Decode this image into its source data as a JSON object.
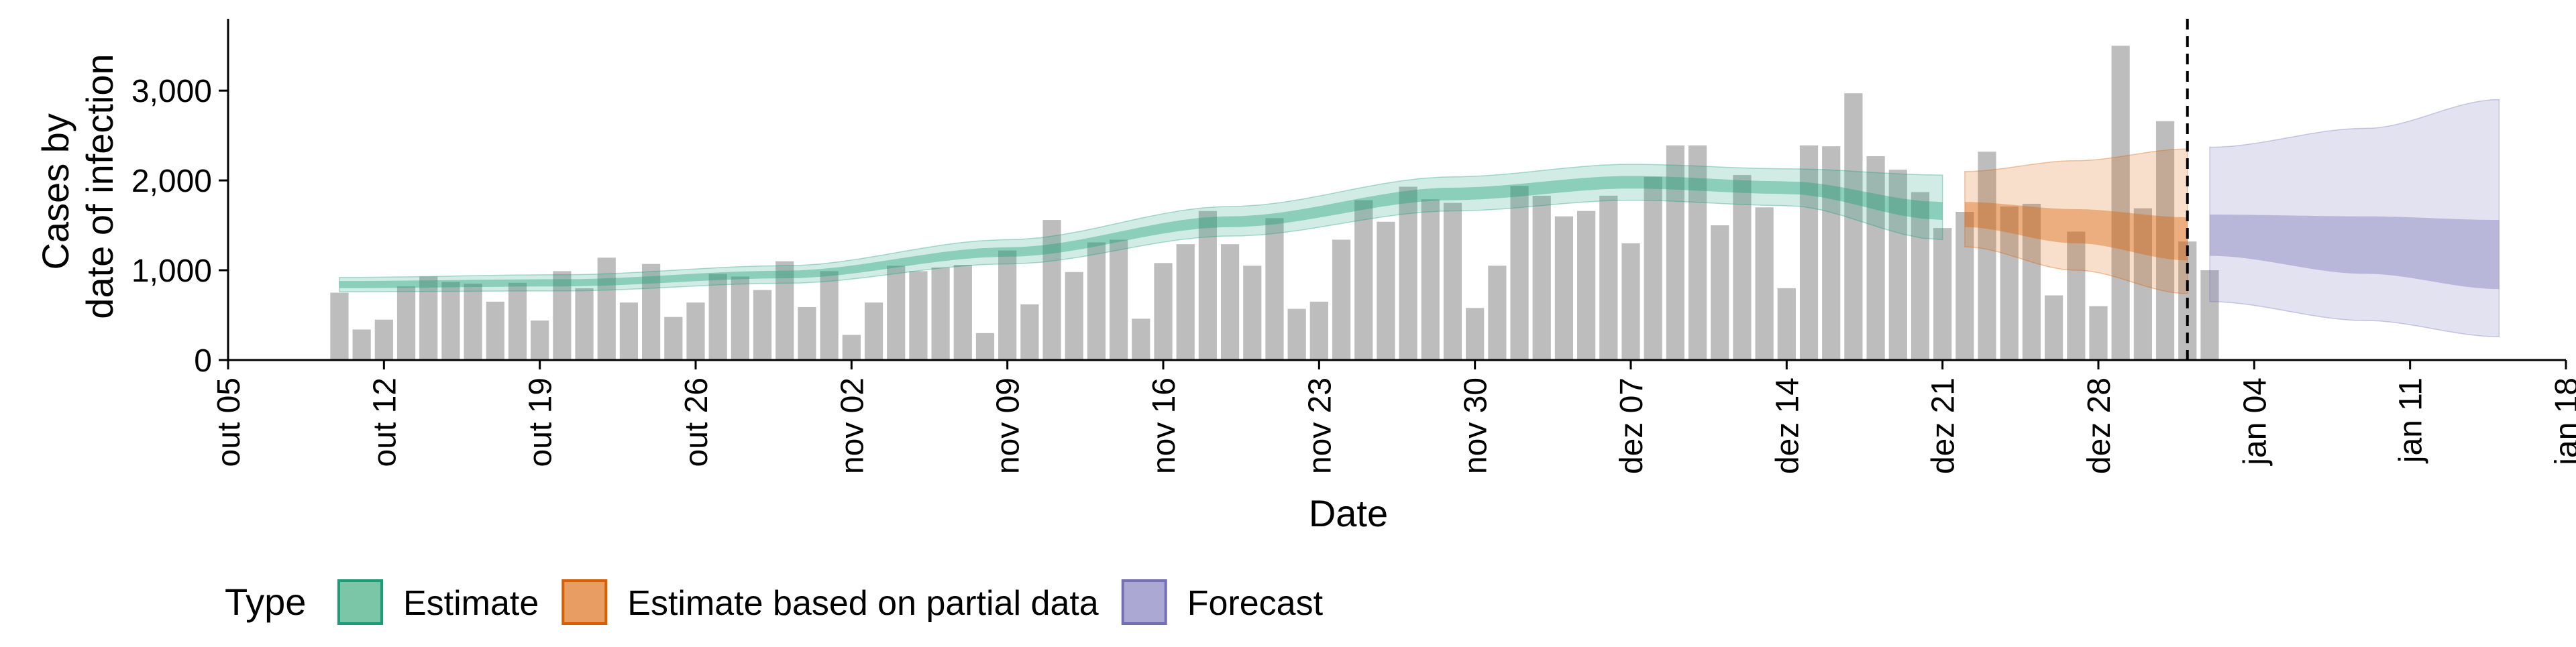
{
  "chart_data": {
    "type": "bar",
    "title": "",
    "xlabel": "Date",
    "ylabel_lines": [
      "Cases by",
      "date of infection"
    ],
    "x_domain": [
      "2020-10-05",
      "2021-01-18"
    ],
    "ylim": [
      0,
      3800
    ],
    "x_ticks": [
      {
        "date": "2020-10-05",
        "label": "out 05"
      },
      {
        "date": "2020-10-12",
        "label": "out 12"
      },
      {
        "date": "2020-10-19",
        "label": "out 19"
      },
      {
        "date": "2020-10-26",
        "label": "out 26"
      },
      {
        "date": "2020-11-02",
        "label": "nov 02"
      },
      {
        "date": "2020-11-09",
        "label": "nov 09"
      },
      {
        "date": "2020-11-16",
        "label": "nov 16"
      },
      {
        "date": "2020-11-23",
        "label": "nov 23"
      },
      {
        "date": "2020-11-30",
        "label": "nov 30"
      },
      {
        "date": "2020-12-07",
        "label": "dez 07"
      },
      {
        "date": "2020-12-14",
        "label": "dez 14"
      },
      {
        "date": "2020-12-21",
        "label": "dez 21"
      },
      {
        "date": "2020-12-28",
        "label": "dez 28"
      },
      {
        "date": "2021-01-04",
        "label": "jan 04"
      },
      {
        "date": "2021-01-11",
        "label": "jan 11"
      },
      {
        "date": "2021-01-18",
        "label": "jan 18"
      }
    ],
    "y_ticks": [
      {
        "value": 0,
        "label": "0"
      },
      {
        "value": 1000,
        "label": "1,000"
      },
      {
        "value": 2000,
        "label": "2,000"
      },
      {
        "value": 3000,
        "label": "3,000"
      }
    ],
    "grid": false,
    "bars": {
      "start_date": "2020-10-10",
      "color": "#bdbdbd",
      "values": [
        750,
        340,
        450,
        820,
        930,
        870,
        850,
        650,
        860,
        440,
        990,
        800,
        1140,
        640,
        1070,
        480,
        640,
        960,
        930,
        780,
        1100,
        590,
        990,
        280,
        640,
        1050,
        990,
        1030,
        1060,
        300,
        1220,
        620,
        1560,
        980,
        1310,
        1340,
        460,
        1080,
        1290,
        1660,
        1290,
        1050,
        1580,
        570,
        650,
        1340,
        1780,
        1540,
        1930,
        1790,
        1750,
        580,
        1050,
        1940,
        1830,
        1600,
        1660,
        1830,
        1300,
        2040,
        2390,
        2390,
        1500,
        2060,
        1700,
        800,
        2390,
        2380,
        2970,
        2270,
        2120,
        1870,
        1470,
        1650,
        2320,
        1710,
        1740,
        720,
        1430,
        600,
        3500,
        1690,
        2660,
        1320,
        1000
      ]
    },
    "cutoff_date": "2021-01-01",
    "series": [
      {
        "name": "Estimate",
        "color": "#1b9e77",
        "start_date": "2020-10-10",
        "end_date": "2020-12-21",
        "anchors": [
          {
            "date": "2020-10-10",
            "median": 840,
            "inner": [
              800,
              880
            ],
            "outer": [
              760,
              920
            ]
          },
          {
            "date": "2020-10-20",
            "median": 860,
            "inner": [
              820,
              900
            ],
            "outer": [
              770,
              950
            ]
          },
          {
            "date": "2020-10-30",
            "median": 950,
            "inner": [
              910,
              995
            ],
            "outer": [
              855,
              1050
            ]
          },
          {
            "date": "2020-11-09",
            "median": 1200,
            "inner": [
              1150,
              1255
            ],
            "outer": [
              1070,
              1340
            ]
          },
          {
            "date": "2020-11-19",
            "median": 1540,
            "inner": [
              1480,
              1600
            ],
            "outer": [
              1380,
              1710
            ]
          },
          {
            "date": "2020-11-29",
            "median": 1850,
            "inner": [
              1780,
              1920
            ],
            "outer": [
              1660,
              2040
            ]
          },
          {
            "date": "2020-12-07",
            "median": 1980,
            "inner": [
              1910,
              2050
            ],
            "outer": [
              1780,
              2180
            ]
          },
          {
            "date": "2020-12-14",
            "median": 1920,
            "inner": [
              1850,
              1990
            ],
            "outer": [
              1720,
              2130
            ]
          },
          {
            "date": "2020-12-21",
            "median": 1660,
            "inner": [
              1560,
              1760
            ],
            "outer": [
              1340,
              2060
            ]
          }
        ]
      },
      {
        "name": "Estimate based on partial data",
        "color": "#d95f02",
        "start_date": "2020-12-22",
        "end_date": "2021-01-01",
        "anchors": [
          {
            "date": "2020-12-22",
            "median": 1620,
            "inner": [
              1480,
              1760
            ],
            "outer": [
              1260,
              2100
            ]
          },
          {
            "date": "2020-12-27",
            "median": 1480,
            "inner": [
              1300,
              1680
            ],
            "outer": [
              1000,
              2220
            ]
          },
          {
            "date": "2021-01-01",
            "median": 1340,
            "inner": [
              1110,
              1590
            ],
            "outer": [
              740,
              2350
            ]
          }
        ]
      },
      {
        "name": "Forecast",
        "color": "#7570b3",
        "start_date": "2021-01-02",
        "end_date": "2021-01-15",
        "anchors": [
          {
            "date": "2021-01-02",
            "median": 1380,
            "inner": [
              1160,
              1620
            ],
            "outer": [
              650,
              2370
            ]
          },
          {
            "date": "2021-01-09",
            "median": 1290,
            "inner": [
              960,
              1600
            ],
            "outer": [
              440,
              2580
            ]
          },
          {
            "date": "2021-01-15",
            "median": 1210,
            "inner": [
              790,
              1560
            ],
            "outer": [
              260,
              2900
            ]
          }
        ]
      }
    ],
    "legend": {
      "title": "Type",
      "position": "bottom",
      "items": [
        {
          "label": "Estimate",
          "fill": "#7ac6a6",
          "border": "#1b9e77"
        },
        {
          "label": "Estimate based on partial data",
          "fill": "#e89d63",
          "border": "#d95f02"
        },
        {
          "label": "Forecast",
          "fill": "#aba8d3",
          "border": "#7570b3"
        }
      ]
    }
  }
}
